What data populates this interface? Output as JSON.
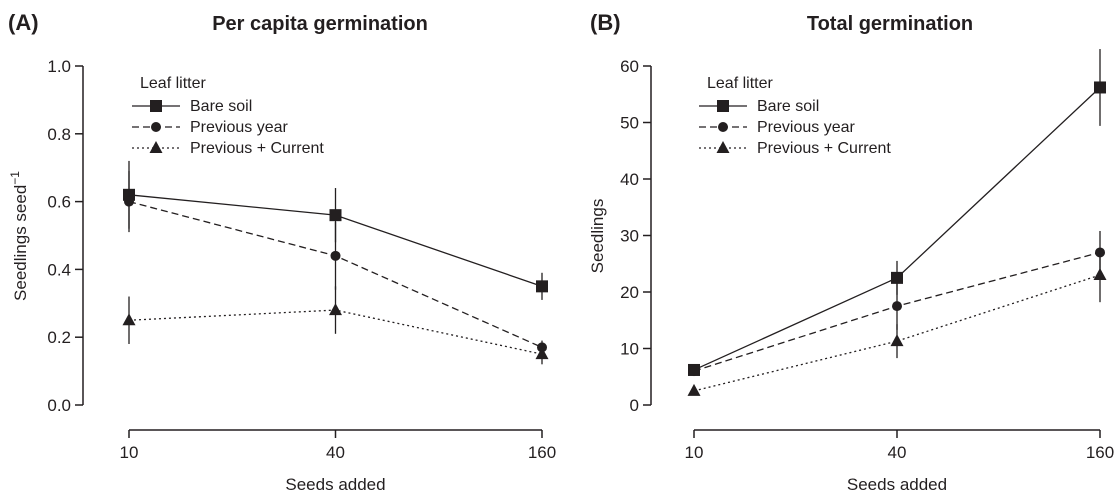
{
  "chart_data": [
    {
      "type": "line",
      "panel_label": "(A)",
      "title": "Per capita germination",
      "xlabel": "Seeds added",
      "ylabel": "Seedlings seed",
      "ylabel_superscript": "−1",
      "categories": [
        "10",
        "40",
        "160"
      ],
      "ylim": [
        0,
        1.0
      ],
      "yticks": [
        "0.0",
        "0.2",
        "0.4",
        "0.6",
        "0.8",
        "1.0"
      ],
      "grid": false,
      "legend_title": "Leaf litter",
      "legend_position": "top-left",
      "series": [
        {
          "name": "Bare soil",
          "marker": "square",
          "line": "solid",
          "values": [
            0.62,
            0.56,
            0.35
          ],
          "err": [
            0.1,
            0.08,
            0.04
          ]
        },
        {
          "name": "Previous year",
          "marker": "circle",
          "line": "dashed",
          "values": [
            0.6,
            0.44,
            0.17
          ],
          "err": [
            0.09,
            0.1,
            0.02
          ]
        },
        {
          "name": "Previous + Current",
          "marker": "triangle",
          "line": "dotted",
          "values": [
            0.25,
            0.28,
            0.15
          ],
          "err": [
            0.07,
            0.07,
            0.03
          ]
        }
      ]
    },
    {
      "type": "line",
      "panel_label": "(B)",
      "title": "Total germination",
      "xlabel": "Seeds added",
      "ylabel": "Seedlings",
      "ylabel_superscript": "",
      "categories": [
        "10",
        "40",
        "160"
      ],
      "ylim": [
        0,
        60
      ],
      "yticks": [
        "0",
        "10",
        "20",
        "30",
        "40",
        "50",
        "60"
      ],
      "grid": false,
      "legend_title": "Leaf litter",
      "legend_position": "top-left",
      "series": [
        {
          "name": "Bare soil",
          "marker": "square",
          "line": "solid",
          "values": [
            6.2,
            22.5,
            56.2
          ],
          "err": [
            0.8,
            3.0,
            6.8
          ]
        },
        {
          "name": "Previous year",
          "marker": "circle",
          "line": "dashed",
          "values": [
            6.0,
            17.5,
            27.0
          ],
          "err": [
            0.7,
            4.2,
            3.8
          ]
        },
        {
          "name": "Previous + Current",
          "marker": "triangle",
          "line": "dotted",
          "values": [
            2.5,
            11.3,
            23.0
          ],
          "err": [
            0.5,
            3.0,
            4.8
          ]
        }
      ]
    }
  ],
  "colors": {
    "ink": "#231f20"
  }
}
